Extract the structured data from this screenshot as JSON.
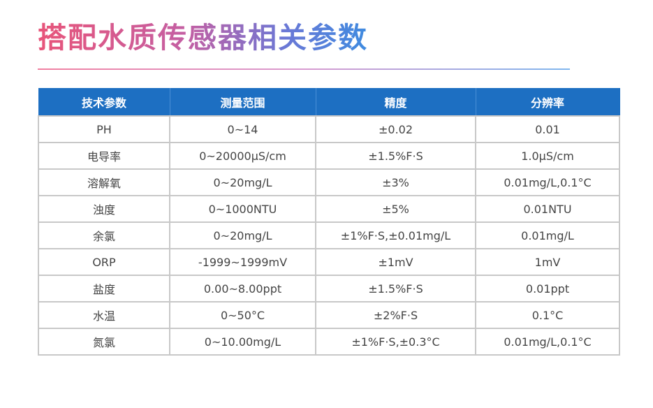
{
  "title": "搭配水质传感器相关参数",
  "table": {
    "headers": [
      "技术参数",
      "测量范围",
      "精度",
      "分辨率"
    ],
    "rows": [
      [
        "PH",
        "0~14",
        "±0.02",
        "0.01"
      ],
      [
        "电导率",
        "0~20000μS/cm",
        "±1.5%F·S",
        "1.0μS/cm"
      ],
      [
        "溶解氧",
        "0~20mg/L",
        "±3%",
        "0.01mg/L,0.1°C"
      ],
      [
        "浊度",
        "0~1000NTU",
        "±5%",
        "0.01NTU"
      ],
      [
        "余氯",
        "0~20mg/L",
        "±1%F·S,±0.01mg/L",
        "0.01mg/L"
      ],
      [
        "ORP",
        "-1999~1999mV",
        "±1mV",
        "1mV"
      ],
      [
        "盐度",
        "0.00~8.00ppt",
        "±1.5%F·S",
        "0.01ppt"
      ],
      [
        "水温",
        "0~50°C",
        "±2%F·S",
        "0.1°C"
      ],
      [
        "氮氯",
        "0~10.00mg/L",
        "±1%F·S,±0.3°C",
        "0.01mg/L,0.1°C"
      ]
    ]
  },
  "colors": {
    "header_bg": "#1d6fc2",
    "grid": "#c8c8c8",
    "title_gradient_start": "#e8557a",
    "title_gradient_end": "#3f8be0"
  }
}
